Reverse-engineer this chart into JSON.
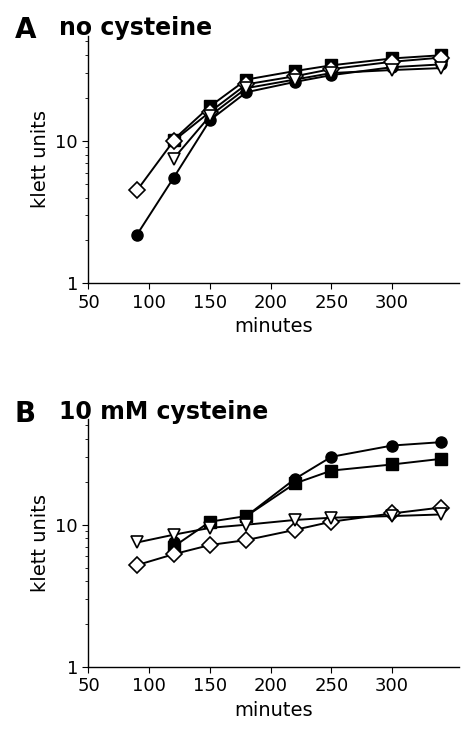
{
  "panel_A_title": "no cysteine",
  "panel_B_title": "10 mM cysteine",
  "panel_label_A": "A",
  "panel_label_B": "B",
  "xlabel": "minutes",
  "ylabel": "klett units",
  "xlim": [
    50,
    355
  ],
  "ylim": [
    1,
    55
  ],
  "xticks": [
    50,
    100,
    150,
    200,
    250,
    300
  ],
  "ytick_labels": [
    [
      1,
      "1"
    ],
    [
      10,
      "10"
    ]
  ],
  "x_values": [
    90,
    120,
    150,
    180,
    220,
    250,
    300,
    340
  ],
  "panel_A": {
    "filled_circle": [
      2.2,
      5.5,
      14.0,
      22.0,
      26.0,
      29.0,
      33.0,
      34.5
    ],
    "filled_square": [
      null,
      10.2,
      17.5,
      27.0,
      31.0,
      34.0,
      38.0,
      40.0
    ],
    "open_diamond": [
      4.5,
      10.0,
      16.0,
      25.0,
      28.5,
      32.0,
      36.0,
      38.5
    ],
    "open_inv_tri": [
      null,
      7.5,
      15.0,
      23.5,
      27.0,
      30.0,
      31.5,
      32.5
    ]
  },
  "panel_B": {
    "filled_circle": [
      null,
      7.5,
      null,
      11.5,
      21.0,
      30.0,
      36.0,
      38.0
    ],
    "filled_square": [
      null,
      7.0,
      10.5,
      11.5,
      19.5,
      24.0,
      26.5,
      29.0
    ],
    "open_diamond": [
      5.2,
      6.2,
      7.2,
      7.8,
      9.2,
      10.5,
      12.0,
      13.2
    ],
    "open_inv_tri": [
      7.5,
      8.5,
      9.5,
      10.0,
      10.8,
      11.2,
      11.5,
      11.8
    ]
  },
  "line_color": "#000000",
  "bg_color": "#ffffff",
  "title_fontsize": 17,
  "label_fontsize": 14,
  "tick_fontsize": 13,
  "panel_label_fontsize": 20,
  "marker_size": 8,
  "line_width": 1.4
}
